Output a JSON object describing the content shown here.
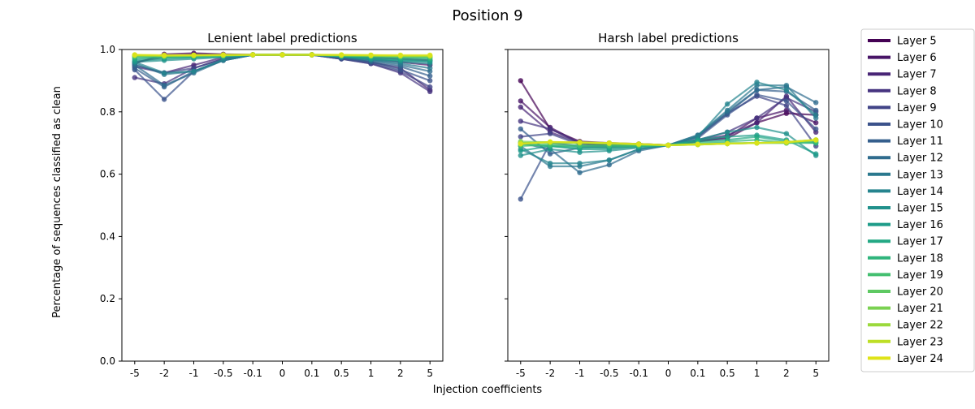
{
  "figure": {
    "title": "Position 9",
    "xlabel": "Injection coefficients",
    "ylabel": "Percentage of sequences classified as clean"
  },
  "chart_data": [
    {
      "type": "line",
      "title": "Lenient label predictions",
      "categories": [
        "-5",
        "-2",
        "-1",
        "-0.5",
        "-0.1",
        "0",
        "0.1",
        "0.5",
        "1",
        "2",
        "5"
      ],
      "ylim": [
        0,
        1
      ],
      "yticks": [
        "0.0",
        "0.2",
        "0.4",
        "0.6",
        "0.8",
        "1.0"
      ],
      "grid": false,
      "series": [
        {
          "name": "Layer 5",
          "values": [
            0.955,
            0.985,
            0.988,
            0.985,
            0.983,
            0.983,
            0.983,
            0.98,
            0.975,
            0.97,
            0.965
          ]
        },
        {
          "name": "Layer 6",
          "values": [
            0.96,
            0.975,
            0.985,
            0.983,
            0.983,
            0.983,
            0.983,
            0.98,
            0.97,
            0.96,
            0.95
          ]
        },
        {
          "name": "Layer 7",
          "values": [
            0.945,
            0.925,
            0.95,
            0.975,
            0.983,
            0.983,
            0.983,
            0.975,
            0.96,
            0.94,
            0.87
          ]
        },
        {
          "name": "Layer 8",
          "values": [
            0.91,
            0.89,
            0.94,
            0.97,
            0.983,
            0.983,
            0.983,
            0.97,
            0.955,
            0.925,
            0.865
          ]
        },
        {
          "name": "Layer 9",
          "values": [
            0.95,
            0.925,
            0.94,
            0.97,
            0.983,
            0.983,
            0.983,
            0.97,
            0.955,
            0.93,
            0.88
          ]
        },
        {
          "name": "Layer 10",
          "values": [
            0.935,
            0.84,
            0.93,
            0.965,
            0.983,
            0.983,
            0.983,
            0.97,
            0.96,
            0.935,
            0.9
          ]
        },
        {
          "name": "Layer 11",
          "values": [
            0.94,
            0.88,
            0.93,
            0.965,
            0.983,
            0.983,
            0.983,
            0.975,
            0.96,
            0.945,
            0.915
          ]
        },
        {
          "name": "Layer 12",
          "values": [
            0.95,
            0.885,
            0.925,
            0.965,
            0.983,
            0.983,
            0.983,
            0.975,
            0.965,
            0.95,
            0.93
          ]
        },
        {
          "name": "Layer 13",
          "values": [
            0.955,
            0.92,
            0.93,
            0.965,
            0.983,
            0.983,
            0.983,
            0.975,
            0.965,
            0.955,
            0.94
          ]
        },
        {
          "name": "Layer 14",
          "values": [
            0.96,
            0.925,
            0.93,
            0.968,
            0.983,
            0.983,
            0.983,
            0.978,
            0.968,
            0.96,
            0.955
          ]
        },
        {
          "name": "Layer 15",
          "values": [
            0.96,
            0.965,
            0.97,
            0.975,
            0.983,
            0.983,
            0.983,
            0.978,
            0.97,
            0.965,
            0.96
          ]
        },
        {
          "name": "Layer 16",
          "values": [
            0.965,
            0.97,
            0.975,
            0.978,
            0.983,
            0.983,
            0.983,
            0.978,
            0.97,
            0.965,
            0.963
          ]
        },
        {
          "name": "Layer 17",
          "values": [
            0.97,
            0.975,
            0.975,
            0.978,
            0.983,
            0.983,
            0.983,
            0.978,
            0.975,
            0.97,
            0.968
          ]
        },
        {
          "name": "Layer 18",
          "values": [
            0.975,
            0.975,
            0.978,
            0.98,
            0.983,
            0.983,
            0.983,
            0.98,
            0.978,
            0.975,
            0.972
          ]
        },
        {
          "name": "Layer 19",
          "values": [
            0.978,
            0.978,
            0.98,
            0.98,
            0.983,
            0.983,
            0.983,
            0.98,
            0.978,
            0.976,
            0.975
          ]
        },
        {
          "name": "Layer 20",
          "values": [
            0.98,
            0.978,
            0.98,
            0.98,
            0.983,
            0.983,
            0.983,
            0.98,
            0.98,
            0.978,
            0.977
          ]
        },
        {
          "name": "Layer 21",
          "values": [
            0.98,
            0.98,
            0.98,
            0.982,
            0.983,
            0.983,
            0.983,
            0.982,
            0.98,
            0.979,
            0.978
          ]
        },
        {
          "name": "Layer 22",
          "values": [
            0.982,
            0.98,
            0.98,
            0.982,
            0.983,
            0.983,
            0.983,
            0.982,
            0.98,
            0.98,
            0.98
          ]
        },
        {
          "name": "Layer 23",
          "values": [
            0.982,
            0.98,
            0.982,
            0.982,
            0.983,
            0.983,
            0.983,
            0.982,
            0.982,
            0.98,
            0.98
          ]
        },
        {
          "name": "Layer 24",
          "values": [
            0.983,
            0.982,
            0.982,
            0.983,
            0.983,
            0.983,
            0.983,
            0.983,
            0.982,
            0.982,
            0.982
          ]
        }
      ]
    },
    {
      "type": "line",
      "title": "Harsh label predictions",
      "categories": [
        "-5",
        "-2",
        "-1",
        "-0.5",
        "-0.1",
        "0",
        "0.1",
        "0.5",
        "1",
        "2",
        "5"
      ],
      "ylim": [
        0,
        1
      ],
      "grid": false,
      "series": [
        {
          "name": "Layer 5",
          "values": [
            0.9,
            0.745,
            0.705,
            0.7,
            0.697,
            0.693,
            0.705,
            0.715,
            0.765,
            0.795,
            0.79
          ]
        },
        {
          "name": "Layer 6",
          "values": [
            0.835,
            0.75,
            0.7,
            0.695,
            0.697,
            0.693,
            0.705,
            0.72,
            0.78,
            0.805,
            0.765
          ]
        },
        {
          "name": "Layer 7",
          "values": [
            0.815,
            0.735,
            0.7,
            0.69,
            0.695,
            0.693,
            0.71,
            0.725,
            0.765,
            0.85,
            0.735
          ]
        },
        {
          "name": "Layer 8",
          "values": [
            0.77,
            0.745,
            0.7,
            0.69,
            0.695,
            0.693,
            0.71,
            0.735,
            0.78,
            0.845,
            0.8
          ]
        },
        {
          "name": "Layer 9",
          "values": [
            0.72,
            0.73,
            0.695,
            0.69,
            0.695,
            0.693,
            0.72,
            0.795,
            0.85,
            0.82,
            0.69
          ]
        },
        {
          "name": "Layer 10",
          "values": [
            0.52,
            0.7,
            0.69,
            0.685,
            0.69,
            0.693,
            0.715,
            0.79,
            0.855,
            0.835,
            0.745
          ]
        },
        {
          "name": "Layer 11",
          "values": [
            0.745,
            0.665,
            0.685,
            0.69,
            0.69,
            0.693,
            0.72,
            0.795,
            0.87,
            0.865,
            0.805
          ]
        },
        {
          "name": "Layer 12",
          "values": [
            0.7,
            0.68,
            0.605,
            0.63,
            0.675,
            0.693,
            0.725,
            0.8,
            0.87,
            0.88,
            0.83
          ]
        },
        {
          "name": "Layer 13",
          "values": [
            0.69,
            0.625,
            0.625,
            0.645,
            0.68,
            0.693,
            0.725,
            0.805,
            0.885,
            0.885,
            0.78
          ]
        },
        {
          "name": "Layer 14",
          "values": [
            0.68,
            0.635,
            0.635,
            0.645,
            0.68,
            0.693,
            0.72,
            0.825,
            0.895,
            0.87,
            0.79
          ]
        },
        {
          "name": "Layer 15",
          "values": [
            0.66,
            0.68,
            0.67,
            0.675,
            0.685,
            0.693,
            0.71,
            0.735,
            0.75,
            0.73,
            0.66
          ]
        },
        {
          "name": "Layer 16",
          "values": [
            0.675,
            0.69,
            0.68,
            0.68,
            0.688,
            0.693,
            0.71,
            0.72,
            0.725,
            0.71,
            0.665
          ]
        },
        {
          "name": "Layer 17",
          "values": [
            0.7,
            0.69,
            0.685,
            0.685,
            0.69,
            0.693,
            0.705,
            0.71,
            0.72,
            0.705,
            0.7
          ]
        },
        {
          "name": "Layer 18",
          "values": [
            0.695,
            0.69,
            0.69,
            0.69,
            0.69,
            0.693,
            0.7,
            0.705,
            0.71,
            0.7,
            0.7
          ]
        },
        {
          "name": "Layer 19",
          "values": [
            0.69,
            0.695,
            0.692,
            0.692,
            0.692,
            0.693,
            0.697,
            0.7,
            0.7,
            0.7,
            0.705
          ]
        },
        {
          "name": "Layer 20",
          "values": [
            0.7,
            0.7,
            0.7,
            0.698,
            0.695,
            0.693,
            0.695,
            0.698,
            0.7,
            0.7,
            0.708
          ]
        },
        {
          "name": "Layer 21",
          "values": [
            0.705,
            0.702,
            0.7,
            0.698,
            0.695,
            0.693,
            0.695,
            0.698,
            0.7,
            0.702,
            0.71
          ]
        },
        {
          "name": "Layer 22",
          "values": [
            0.7,
            0.703,
            0.7,
            0.698,
            0.695,
            0.693,
            0.695,
            0.698,
            0.7,
            0.703,
            0.71
          ]
        },
        {
          "name": "Layer 23",
          "values": [
            0.698,
            0.703,
            0.702,
            0.7,
            0.697,
            0.693,
            0.695,
            0.698,
            0.7,
            0.703,
            0.71
          ]
        },
        {
          "name": "Layer 24",
          "values": [
            0.697,
            0.703,
            0.702,
            0.7,
            0.697,
            0.693,
            0.696,
            0.698,
            0.7,
            0.702,
            0.71
          ]
        }
      ]
    }
  ],
  "legend": {
    "placement": "right",
    "entries": [
      "Layer 5",
      "Layer 6",
      "Layer 7",
      "Layer 8",
      "Layer 9",
      "Layer 10",
      "Layer 11",
      "Layer 12",
      "Layer 13",
      "Layer 14",
      "Layer 15",
      "Layer 16",
      "Layer 17",
      "Layer 18",
      "Layer 19",
      "Layer 20",
      "Layer 21",
      "Layer 22",
      "Layer 23",
      "Layer 24"
    ]
  },
  "colors": [
    "#440154",
    "#481467",
    "#482576",
    "#463480",
    "#414487",
    "#3b528b",
    "#355f8d",
    "#2f6c8e",
    "#2a788e",
    "#25848e",
    "#21918c",
    "#1e9c89",
    "#22a884",
    "#2fb47c",
    "#44bf70",
    "#5ec962",
    "#7ad151",
    "#9bd93c",
    "#bddf26",
    "#dfe318",
    "#fde725"
  ]
}
